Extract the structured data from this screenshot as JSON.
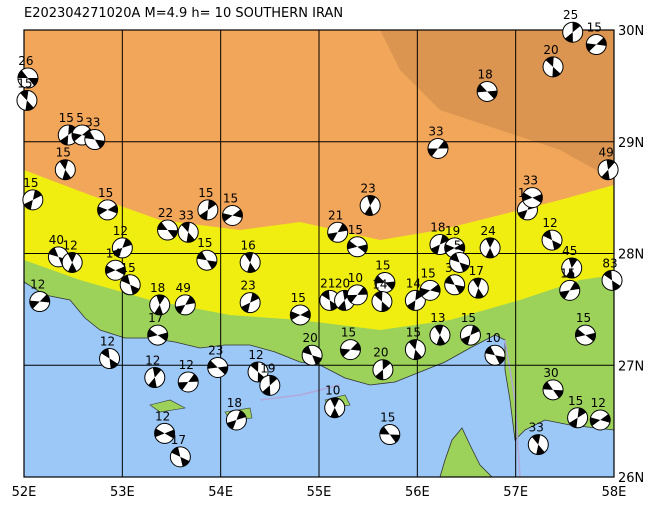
{
  "map": {
    "title": "E202304271020A M=4.9 h= 10 SOUTHERN IRAN",
    "lonlim": [
      52,
      58
    ],
    "latlim": [
      26,
      30
    ],
    "lonticks": [
      {
        "value": 52,
        "label": "52E"
      },
      {
        "value": 53,
        "label": "53E"
      },
      {
        "value": 54,
        "label": "54E"
      },
      {
        "value": 55,
        "label": "55E"
      },
      {
        "value": 56,
        "label": "56E"
      },
      {
        "value": 57,
        "label": "57E"
      },
      {
        "value": 58,
        "label": "58E"
      }
    ],
    "latticks": [
      {
        "value": 30,
        "label": "30N"
      },
      {
        "value": 29,
        "label": "29N"
      },
      {
        "value": 28,
        "label": "28N"
      },
      {
        "value": 27,
        "label": "27N"
      },
      {
        "value": 26,
        "label": "26N"
      }
    ],
    "events": [
      {
        "lon": 52.04,
        "lat": 29.57,
        "depth": 26
      },
      {
        "lon": 52.03,
        "lat": 29.37,
        "depth": 15
      },
      {
        "lon": 52.45,
        "lat": 29.06,
        "depth": 15
      },
      {
        "lon": 52.59,
        "lat": 29.06,
        "depth": 5
      },
      {
        "lon": 52.72,
        "lat": 29.02,
        "depth": 33
      },
      {
        "lon": 52.42,
        "lat": 28.75,
        "depth": 15
      },
      {
        "lon": 52.09,
        "lat": 28.48,
        "depth": 15
      },
      {
        "lon": 52.85,
        "lat": 28.39,
        "depth": 15
      },
      {
        "lon": 52.35,
        "lat": 27.97,
        "depth": 40
      },
      {
        "lon": 52.49,
        "lat": 27.92,
        "depth": 12
      },
      {
        "lon": 53.0,
        "lat": 28.05,
        "depth": 12
      },
      {
        "lon": 52.93,
        "lat": 27.85,
        "depth": 14
      },
      {
        "lon": 53.08,
        "lat": 27.72,
        "depth": 15
      },
      {
        "lon": 53.38,
        "lat": 27.54,
        "depth": 18
      },
      {
        "lon": 53.64,
        "lat": 27.54,
        "depth": 49
      },
      {
        "lon": 53.36,
        "lat": 27.27,
        "depth": 17
      },
      {
        "lon": 52.87,
        "lat": 27.06,
        "depth": 12
      },
      {
        "lon": 53.33,
        "lat": 26.89,
        "depth": 12
      },
      {
        "lon": 53.67,
        "lat": 26.85,
        "depth": 12
      },
      {
        "lon": 53.97,
        "lat": 26.98,
        "depth": 23
      },
      {
        "lon": 54.38,
        "lat": 26.94,
        "depth": 12
      },
      {
        "lon": 54.5,
        "lat": 26.82,
        "depth": 19
      },
      {
        "lon": 52.16,
        "lat": 27.57,
        "depth": 12
      },
      {
        "lon": 53.46,
        "lat": 28.21,
        "depth": 22
      },
      {
        "lon": 53.67,
        "lat": 28.19,
        "depth": 33
      },
      {
        "lon": 53.87,
        "lat": 28.39,
        "depth": 15
      },
      {
        "lon": 54.12,
        "lat": 28.34,
        "depth": 15
      },
      {
        "lon": 53.86,
        "lat": 27.94,
        "depth": 15
      },
      {
        "lon": 54.3,
        "lat": 27.92,
        "depth": 16
      },
      {
        "lon": 54.3,
        "lat": 27.56,
        "depth": 23
      },
      {
        "lon": 54.81,
        "lat": 27.45,
        "depth": 15
      },
      {
        "lon": 54.93,
        "lat": 27.09,
        "depth": 20
      },
      {
        "lon": 55.16,
        "lat": 26.62,
        "depth": 10
      },
      {
        "lon": 54.16,
        "lat": 26.51,
        "depth": 18
      },
      {
        "lon": 53.43,
        "lat": 26.39,
        "depth": 12
      },
      {
        "lon": 53.59,
        "lat": 26.18,
        "depth": 17
      },
      {
        "lon": 55.52,
        "lat": 28.43,
        "depth": 23
      },
      {
        "lon": 55.19,
        "lat": 28.19,
        "depth": 21
      },
      {
        "lon": 55.39,
        "lat": 28.06,
        "depth": 15
      },
      {
        "lon": 55.11,
        "lat": 27.58,
        "depth": 21
      },
      {
        "lon": 55.26,
        "lat": 27.58,
        "depth": 20
      },
      {
        "lon": 55.39,
        "lat": 27.63,
        "depth": 10
      },
      {
        "lon": 55.67,
        "lat": 27.74,
        "depth": 15
      },
      {
        "lon": 55.64,
        "lat": 27.57,
        "depth": 14
      },
      {
        "lon": 55.65,
        "lat": 26.96,
        "depth": 20
      },
      {
        "lon": 55.32,
        "lat": 27.14,
        "depth": 15
      },
      {
        "lon": 55.72,
        "lat": 26.38,
        "depth": 15
      },
      {
        "lon": 55.98,
        "lat": 27.14,
        "depth": 15
      },
      {
        "lon": 55.98,
        "lat": 27.58,
        "depth": 14
      },
      {
        "lon": 56.13,
        "lat": 27.67,
        "depth": 15
      },
      {
        "lon": 56.38,
        "lat": 27.72,
        "depth": 33
      },
      {
        "lon": 56.62,
        "lat": 27.69,
        "depth": 17
      },
      {
        "lon": 56.23,
        "lat": 28.08,
        "depth": 18
      },
      {
        "lon": 56.38,
        "lat": 28.05,
        "depth": 19
      },
      {
        "lon": 56.43,
        "lat": 27.92,
        "depth": 5
      },
      {
        "lon": 56.74,
        "lat": 28.05,
        "depth": 24
      },
      {
        "lon": 57.12,
        "lat": 28.39,
        "depth": 15
      },
      {
        "lon": 57.17,
        "lat": 28.5,
        "depth": 33
      },
      {
        "lon": 57.37,
        "lat": 28.12,
        "depth": 12
      },
      {
        "lon": 57.57,
        "lat": 27.87,
        "depth": 45
      },
      {
        "lon": 57.55,
        "lat": 27.67,
        "depth": 15
      },
      {
        "lon": 57.71,
        "lat": 27.27,
        "depth": 15
      },
      {
        "lon": 57.98,
        "lat": 27.76,
        "depth": 83
      },
      {
        "lon": 57.94,
        "lat": 28.75,
        "depth": 49
      },
      {
        "lon": 56.21,
        "lat": 28.94,
        "depth": 33
      },
      {
        "lon": 56.71,
        "lat": 29.45,
        "depth": 18
      },
      {
        "lon": 57.38,
        "lat": 29.67,
        "depth": 20
      },
      {
        "lon": 57.58,
        "lat": 29.98,
        "depth": 25
      },
      {
        "lon": 57.82,
        "lat": 29.87,
        "depth": 15
      },
      {
        "lon": 57.38,
        "lat": 26.78,
        "depth": 30
      },
      {
        "lon": 57.23,
        "lat": 26.29,
        "depth": 33
      },
      {
        "lon": 57.63,
        "lat": 26.53,
        "depth": 15
      },
      {
        "lon": 57.86,
        "lat": 26.51,
        "depth": 12
      },
      {
        "lon": 56.79,
        "lat": 27.09,
        "depth": 10
      },
      {
        "lon": 56.23,
        "lat": 27.27,
        "depth": 13
      },
      {
        "lon": 56.54,
        "lat": 27.27,
        "depth": 15
      }
    ]
  }
}
